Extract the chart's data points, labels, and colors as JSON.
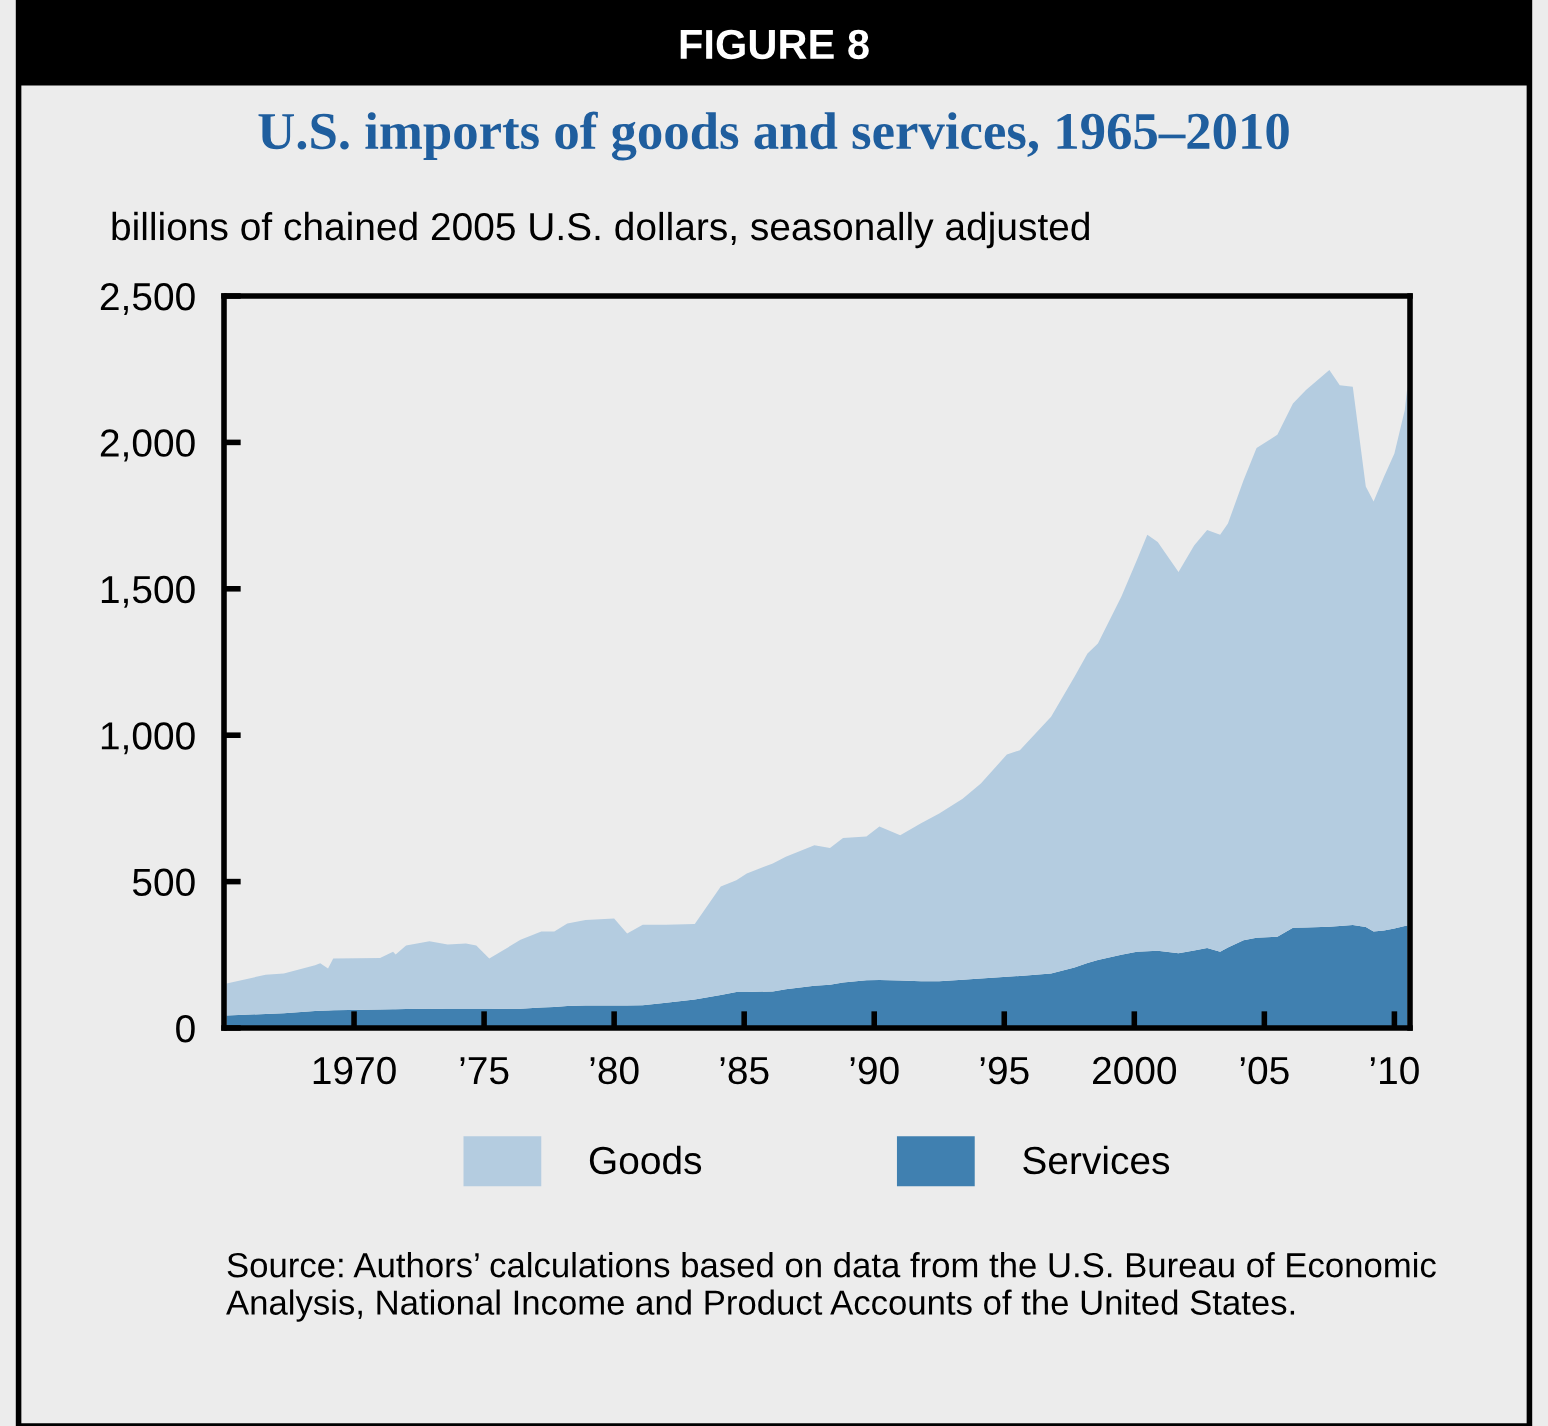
{
  "chart_data": {
    "type": "area",
    "stacked": true,
    "title": "U.S. imports of goods and services, 1965–2010",
    "ylabel": "billions of chained 2005 U.S. dollars, seasonally adjusted",
    "annotations": [
      "FIGURE 8",
      "Source: Authors’ calculations based on data from the U.S. Bureau of Economic Analysis, National Income and Product Accounts of the United States."
    ],
    "x": [
      1965.1,
      1966.6,
      1967.3,
      1968.5,
      1968.7,
      1969.0,
      1969.2,
      1971.0,
      1971.5,
      1971.6,
      1972.0,
      1972.9,
      1973.6,
      1974.3,
      1974.7,
      1975.2,
      1976.4,
      1977.2,
      1977.7,
      1978.2,
      1978.9,
      1980.0,
      1980.5,
      1981.1,
      1982.0,
      1983.1,
      1984.1,
      1984.7,
      1985.1,
      1986.1,
      1986.6,
      1987.7,
      1988.3,
      1988.8,
      1989.7,
      1990.2,
      1991.0,
      1991.8,
      1992.5,
      1993.4,
      1994.1,
      1995.1,
      1995.6,
      1996.8,
      1997.7,
      1998.2,
      1998.6,
      1999.5,
      2000.1,
      2000.5,
      2000.9,
      2001.7,
      2002.3,
      2002.8,
      2003.3,
      2003.6,
      2004.2,
      2004.7,
      2005.5,
      2006.1,
      2006.6,
      2007.5,
      2007.9,
      2008.4,
      2008.9,
      2009.2,
      2009.6,
      2010.0,
      2010.4,
      2010.5
    ],
    "series": [
      {
        "name": "Services",
        "color": "#4080b0",
        "values": [
          43,
          48,
          50,
          58,
          59,
          60,
          61,
          63,
          64,
          64,
          65,
          66,
          65,
          65,
          65,
          65,
          66,
          70,
          72,
          75,
          77,
          77,
          77,
          78,
          86,
          97,
          113,
          123,
          123,
          125,
          132,
          144,
          148,
          155,
          163,
          164,
          162,
          160,
          160,
          165,
          169,
          175,
          178,
          186,
          207,
          222,
          232,
          250,
          260,
          262,
          264,
          255,
          265,
          273,
          260,
          275,
          300,
          308,
          312,
          342,
          343,
          346,
          348,
          352,
          345,
          330,
          333,
          340,
          348,
          350
        ]
      },
      {
        "name": "Goods",
        "color": "#b4cce0",
        "values": [
          109,
          134,
          136,
          156,
          162,
          143,
          176,
          176,
          196,
          187,
          217,
          230,
          220,
          224,
          217,
          172,
          235,
          260,
          258,
          282,
          292,
          297,
          246,
          275,
          267,
          258,
          370,
          382,
          405,
          437,
          453,
          480,
          467,
          494,
          491,
          524,
          496,
          539,
          573,
          618,
          666,
          759,
          771,
          877,
          993,
          1057,
          1081,
          1223,
          1338,
          1423,
          1396,
          1302,
          1383,
          1428,
          1425,
          1448,
          1571,
          1673,
          1714,
          1791,
          1836,
          1901,
          1847,
          1838,
          1504,
          1468,
          1550,
          1622,
          1763,
          1840
        ]
      }
    ],
    "xlim": [
      1965,
      2010.6
    ],
    "xticks": [
      {
        "value": 1970,
        "label": "1970"
      },
      {
        "value": 1975,
        "label": "’75"
      },
      {
        "value": 1980,
        "label": "’80"
      },
      {
        "value": 1985,
        "label": "’85"
      },
      {
        "value": 1990,
        "label": "’90"
      },
      {
        "value": 1995,
        "label": "’95"
      },
      {
        "value": 2000,
        "label": "2000"
      },
      {
        "value": 2005,
        "label": "’05"
      },
      {
        "value": 2010,
        "label": "’10"
      }
    ],
    "ylim": [
      0,
      2500
    ],
    "yticks": [
      {
        "value": 0,
        "label": "0"
      },
      {
        "value": 500,
        "label": "500"
      },
      {
        "value": 1000,
        "label": "1,000"
      },
      {
        "value": 1500,
        "label": "1,500"
      },
      {
        "value": 2000,
        "label": "2,000"
      },
      {
        "value": 2500,
        "label": "2,500"
      }
    ],
    "grid": false,
    "legend": "bottom"
  }
}
